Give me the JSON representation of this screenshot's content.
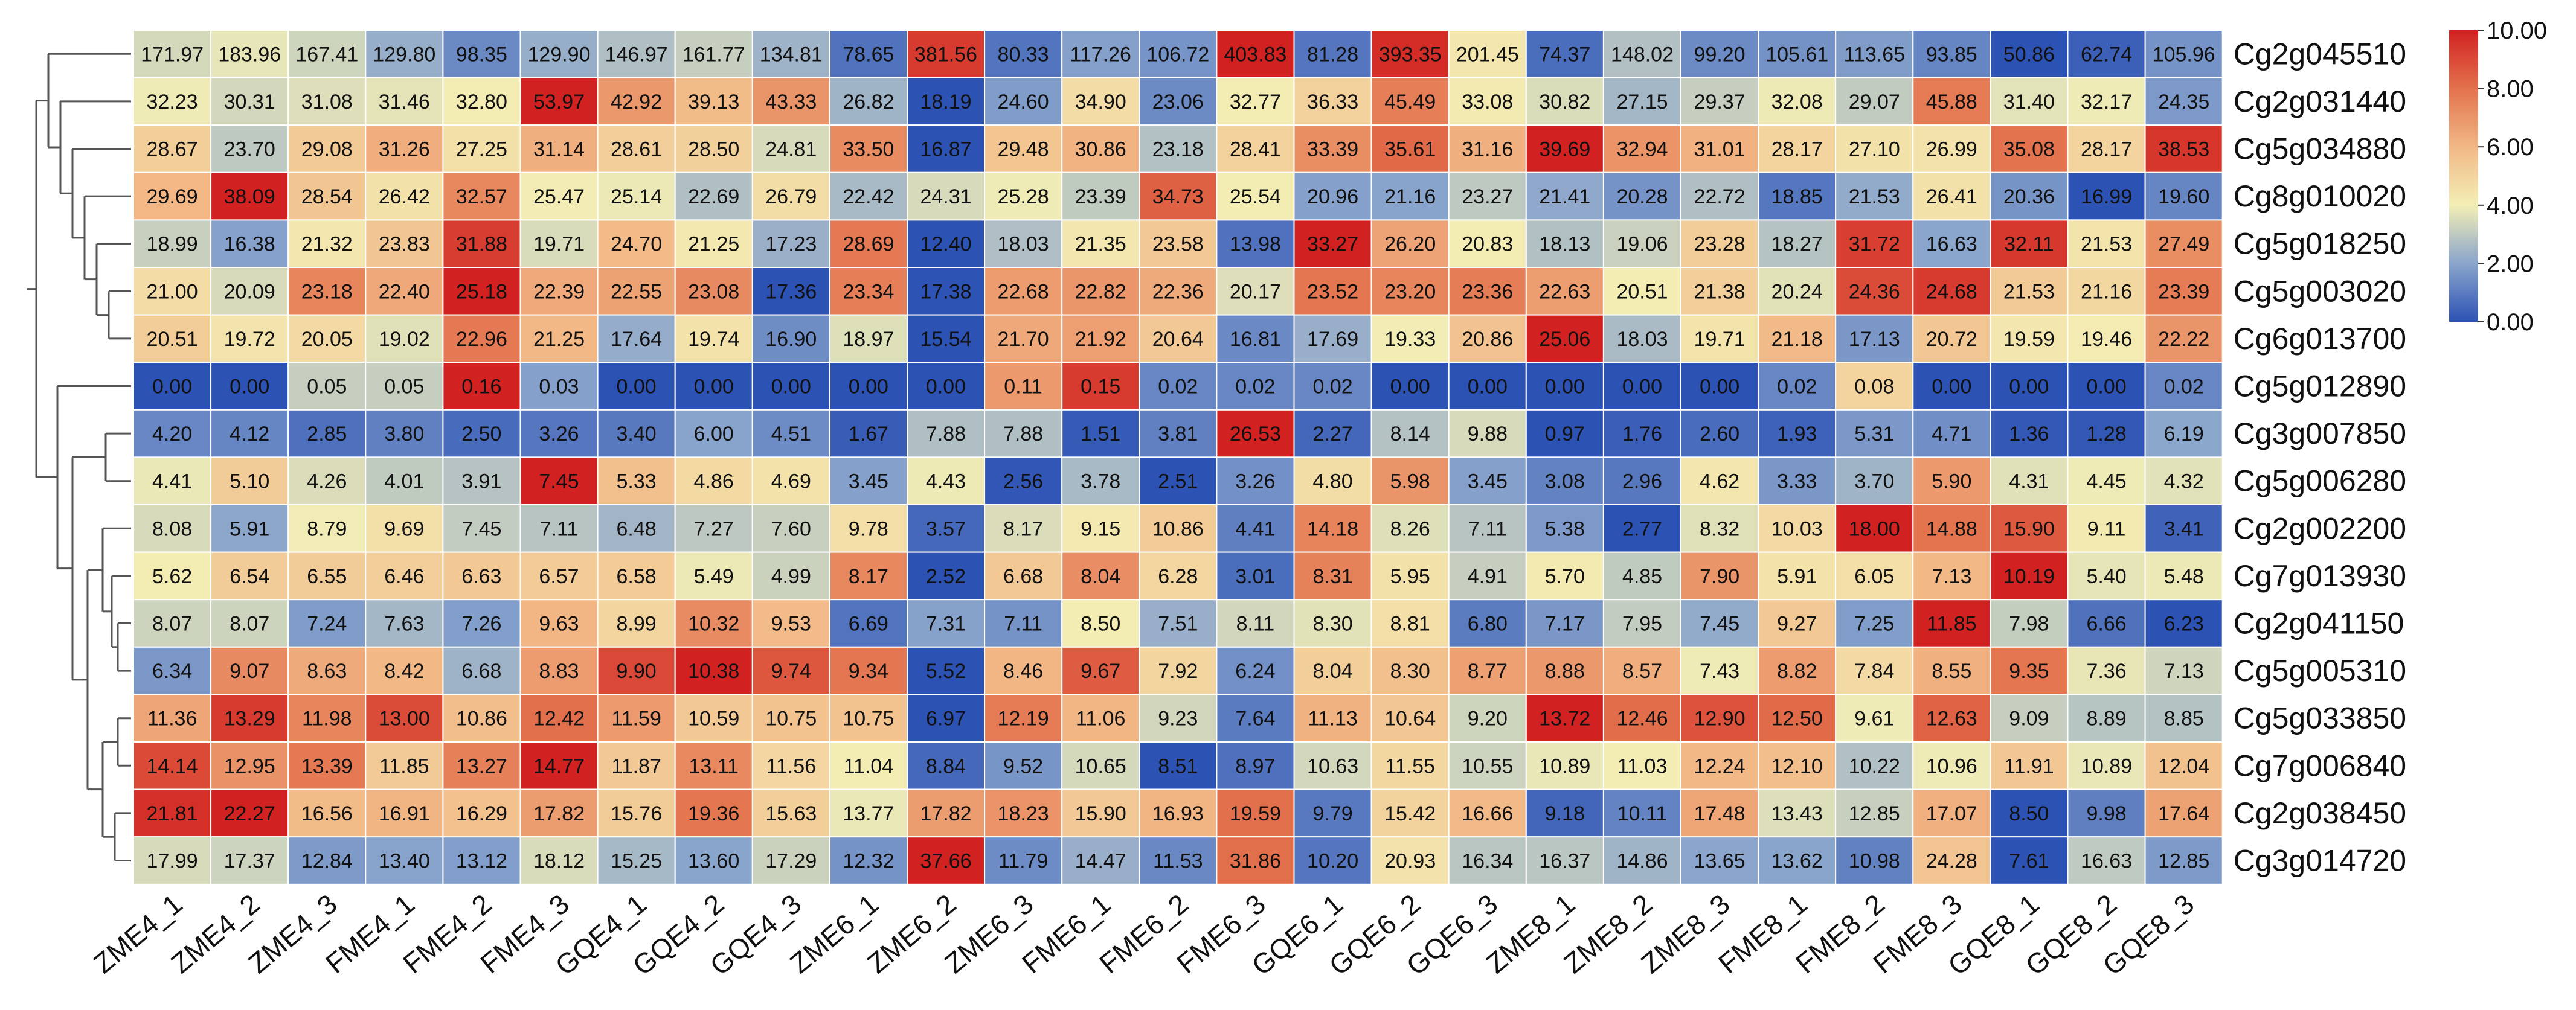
{
  "chart_data": {
    "type": "heatmap",
    "title": "",
    "xlabel": "",
    "ylabel": "",
    "color_scale": {
      "min": 0,
      "max": 10,
      "ticks": [
        "10.00",
        "8.00",
        "6.00",
        "4.00",
        "2.00",
        "0.00"
      ],
      "stops": [
        {
          "value": 0,
          "color": "#2c52b4"
        },
        {
          "value": 2,
          "color": "#8aa5cc"
        },
        {
          "value": 4,
          "color": "#f3eeb5"
        },
        {
          "value": 6,
          "color": "#f2b886"
        },
        {
          "value": 8,
          "color": "#e3724d"
        },
        {
          "value": 10,
          "color": "#d12121"
        }
      ],
      "normalization": "row-wise"
    },
    "columns": [
      "ZME4_1",
      "ZME4_2",
      "ZME4_3",
      "FME4_1",
      "FME4_2",
      "FME4_3",
      "GQE4_1",
      "GQE4_2",
      "GQE4_3",
      "ZME6_1",
      "ZME6_2",
      "ZME6_3",
      "FME6_1",
      "FME6_2",
      "FME6_3",
      "GQE6_1",
      "GQE6_2",
      "GQE6_3",
      "ZME8_1",
      "ZME8_2",
      "ZME8_3",
      "FME8_1",
      "FME8_2",
      "FME8_3",
      "GQE8_1",
      "GQE8_2",
      "GQE8_3"
    ],
    "rows": [
      "Cg2g045510",
      "Cg2g031440",
      "Cg5g034880",
      "Cg8g010020",
      "Cg5g018250",
      "Cg5g003020",
      "Cg6g013700",
      "Cg5g012890",
      "Cg3g007850",
      "Cg5g006280",
      "Cg2g002200",
      "Cg7g013930",
      "Cg2g041150",
      "Cg5g005310",
      "Cg5g033850",
      "Cg7g006840",
      "Cg2g038450",
      "Cg3g014720"
    ],
    "values": [
      [
        171.97,
        183.96,
        167.41,
        129.8,
        98.35,
        129.9,
        146.97,
        161.77,
        134.81,
        78.65,
        381.56,
        80.33,
        117.26,
        106.72,
        403.83,
        81.28,
        393.35,
        201.45,
        74.37,
        148.02,
        99.2,
        105.61,
        113.65,
        93.85,
        50.86,
        62.74,
        105.96
      ],
      [
        32.23,
        30.31,
        31.08,
        31.46,
        32.8,
        53.97,
        42.92,
        39.13,
        43.33,
        26.82,
        18.19,
        24.6,
        34.9,
        23.06,
        32.77,
        36.33,
        45.49,
        33.08,
        30.82,
        27.15,
        29.37,
        32.08,
        29.07,
        45.88,
        31.4,
        32.17,
        24.35
      ],
      [
        28.67,
        23.7,
        29.08,
        31.26,
        27.25,
        31.14,
        28.61,
        28.5,
        24.81,
        33.5,
        16.87,
        29.48,
        30.86,
        23.18,
        28.41,
        33.39,
        35.61,
        31.16,
        39.69,
        32.94,
        31.01,
        28.17,
        27.1,
        26.99,
        35.08,
        28.17,
        38.53
      ],
      [
        29.69,
        38.09,
        28.54,
        26.42,
        32.57,
        25.47,
        25.14,
        22.69,
        26.79,
        22.42,
        24.31,
        25.28,
        23.39,
        34.73,
        25.54,
        20.96,
        21.16,
        23.27,
        21.41,
        20.28,
        22.72,
        18.85,
        21.53,
        26.41,
        20.36,
        16.99,
        19.6
      ],
      [
        18.99,
        16.38,
        21.32,
        23.83,
        31.88,
        19.71,
        24.7,
        21.25,
        17.23,
        28.69,
        12.4,
        18.03,
        21.35,
        23.58,
        13.98,
        33.27,
        26.2,
        20.83,
        18.13,
        19.06,
        23.28,
        18.27,
        31.72,
        16.63,
        32.11,
        21.53,
        27.49
      ],
      [
        21.0,
        20.09,
        23.18,
        22.4,
        25.18,
        22.39,
        22.55,
        23.08,
        17.36,
        23.34,
        17.38,
        22.68,
        22.82,
        22.36,
        20.17,
        23.52,
        23.2,
        23.36,
        22.63,
        20.51,
        21.38,
        20.24,
        24.36,
        24.68,
        21.53,
        21.16,
        23.39
      ],
      [
        20.51,
        19.72,
        20.05,
        19.02,
        22.96,
        21.25,
        17.64,
        19.74,
        16.9,
        18.97,
        15.54,
        21.7,
        21.92,
        20.64,
        16.81,
        17.69,
        19.33,
        20.86,
        25.06,
        18.03,
        19.71,
        21.18,
        17.13,
        20.72,
        19.59,
        19.46,
        22.22
      ],
      [
        0.0,
        0.0,
        0.05,
        0.05,
        0.16,
        0.03,
        0.0,
        0.0,
        0.0,
        0.0,
        0.0,
        0.11,
        0.15,
        0.02,
        0.02,
        0.02,
        0.0,
        0.0,
        0.0,
        0.0,
        0.0,
        0.02,
        0.08,
        0.0,
        0.0,
        0.0,
        0.02
      ],
      [
        4.2,
        4.12,
        2.85,
        3.8,
        2.5,
        3.26,
        3.4,
        6.0,
        4.51,
        1.67,
        7.88,
        7.88,
        1.51,
        3.81,
        26.53,
        2.27,
        8.14,
        9.88,
        0.97,
        1.76,
        2.6,
        1.93,
        5.31,
        4.71,
        1.36,
        1.28,
        6.19
      ],
      [
        4.41,
        5.1,
        4.26,
        4.01,
        3.91,
        7.45,
        5.33,
        4.86,
        4.69,
        3.45,
        4.43,
        2.56,
        3.78,
        2.51,
        3.26,
        4.8,
        5.98,
        3.45,
        3.08,
        2.96,
        4.62,
        3.33,
        3.7,
        5.9,
        4.31,
        4.45,
        4.32
      ],
      [
        8.08,
        5.91,
        8.79,
        9.69,
        7.45,
        7.11,
        6.48,
        7.27,
        7.6,
        9.78,
        3.57,
        8.17,
        9.15,
        10.86,
        4.41,
        14.18,
        8.26,
        7.11,
        5.38,
        2.77,
        8.32,
        10.03,
        18.0,
        14.88,
        15.9,
        9.11,
        3.41
      ],
      [
        5.62,
        6.54,
        6.55,
        6.46,
        6.63,
        6.57,
        6.58,
        5.49,
        4.99,
        8.17,
        2.52,
        6.68,
        8.04,
        6.28,
        3.01,
        8.31,
        5.95,
        4.91,
        5.7,
        4.85,
        7.9,
        5.91,
        6.05,
        7.13,
        10.19,
        5.4,
        5.48
      ],
      [
        8.07,
        8.07,
        7.24,
        7.63,
        7.26,
        9.63,
        8.99,
        10.32,
        9.53,
        6.69,
        7.31,
        7.11,
        8.5,
        7.51,
        8.11,
        8.3,
        8.81,
        6.8,
        7.17,
        7.95,
        7.45,
        9.27,
        7.25,
        11.85,
        7.98,
        6.66,
        6.23
      ],
      [
        6.34,
        9.07,
        8.63,
        8.42,
        6.68,
        8.83,
        9.9,
        10.38,
        9.74,
        9.34,
        5.52,
        8.46,
        9.67,
        7.92,
        6.24,
        8.04,
        8.3,
        8.77,
        8.88,
        8.57,
        7.43,
        8.82,
        7.84,
        8.55,
        9.35,
        7.36,
        7.13
      ],
      [
        11.36,
        13.29,
        11.98,
        13.0,
        10.86,
        12.42,
        11.59,
        10.59,
        10.75,
        10.75,
        6.97,
        12.19,
        11.06,
        9.23,
        7.64,
        11.13,
        10.64,
        9.2,
        13.72,
        12.46,
        12.9,
        12.5,
        9.61,
        12.63,
        9.09,
        8.89,
        8.85
      ],
      [
        14.14,
        12.95,
        13.39,
        11.85,
        13.27,
        14.77,
        11.87,
        13.11,
        11.56,
        11.04,
        8.84,
        9.52,
        10.65,
        8.51,
        8.97,
        10.63,
        11.55,
        10.55,
        10.89,
        11.03,
        12.24,
        12.1,
        10.22,
        10.96,
        11.91,
        10.89,
        12.04
      ],
      [
        21.81,
        22.27,
        16.56,
        16.91,
        16.29,
        17.82,
        15.76,
        19.36,
        15.63,
        13.77,
        17.82,
        18.23,
        15.9,
        16.93,
        19.59,
        9.79,
        15.42,
        16.66,
        9.18,
        10.11,
        17.48,
        13.43,
        12.85,
        17.07,
        8.5,
        9.98,
        17.64
      ],
      [
        17.99,
        17.37,
        12.84,
        13.4,
        13.12,
        18.12,
        15.25,
        13.6,
        17.29,
        12.32,
        37.66,
        11.79,
        14.47,
        11.53,
        31.86,
        10.2,
        20.93,
        16.34,
        16.37,
        14.86,
        13.65,
        13.62,
        10.98,
        24.28,
        7.61,
        16.63,
        12.85
      ]
    ],
    "dendrogram": "row clustering tree on left"
  }
}
